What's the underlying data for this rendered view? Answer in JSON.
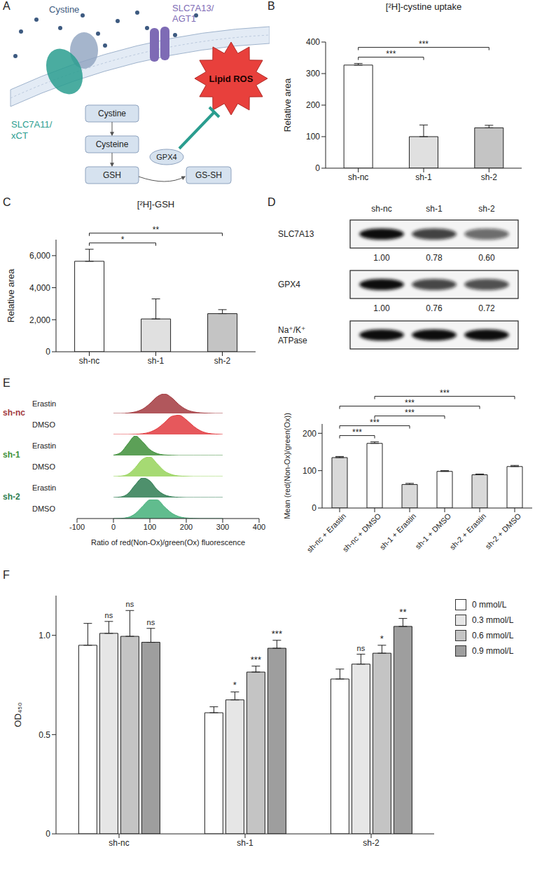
{
  "diagram": {
    "panel": "A",
    "extracellular": "Cystine",
    "transporters": [
      {
        "label": [
          "SLC7A11/",
          "xCT"
        ],
        "color": "#2a9d8f"
      },
      {
        "label": [
          "SLC7A13/",
          "AGT1"
        ],
        "color": "#7e6bb5"
      }
    ],
    "stress": "Lipid ROS",
    "pathway": [
      "Cystine",
      "Cysteine",
      "GSH"
    ],
    "enzyme": "GPX4",
    "product": "GS-SH"
  },
  "blot": {
    "panel": "D",
    "lanes": [
      "sh-nc",
      "sh-1",
      "sh-2"
    ],
    "rows": [
      {
        "label": "SLC7A13",
        "quantification": [
          "1.00",
          "0.78",
          "0.60"
        ]
      },
      {
        "label": "GPX4",
        "quantification": [
          "1.00",
          "0.76",
          "0.72"
        ]
      },
      {
        "label": "Na⁺/K⁺ ATPase",
        "quantification": null
      }
    ]
  },
  "chart_data": [
    {
      "panel": "B",
      "type": "bar",
      "title": "[²H]-cystine uptake",
      "y_label": "Relative area",
      "categories": [
        "sh-nc",
        "sh-1",
        "sh-2"
      ],
      "values": [
        327,
        100,
        128
      ],
      "errors": [
        5,
        37,
        8
      ],
      "colors": [
        "#ffffff",
        "#e0e0e0",
        "#c4c4c4"
      ],
      "ylim": [
        0,
        400
      ],
      "yticks": [
        0,
        100,
        200,
        300,
        400
      ],
      "grid": false,
      "significance": [
        {
          "from": "sh-nc",
          "to": "sh-1",
          "label": "***"
        },
        {
          "from": "sh-nc",
          "to": "sh-2",
          "label": "***"
        }
      ]
    },
    {
      "panel": "C",
      "type": "bar",
      "title": "[²H]-GSH",
      "y_label": "Relative area",
      "categories": [
        "sh-nc",
        "sh-1",
        "sh-2"
      ],
      "values": [
        5650,
        2050,
        2380
      ],
      "errors": [
        750,
        1250,
        250
      ],
      "colors": [
        "#ffffff",
        "#e0e0e0",
        "#c4c4c4"
      ],
      "ylim": [
        0,
        7000
      ],
      "yticks": [
        0,
        {
          "value": 2000,
          "label": "2,000"
        },
        {
          "value": 4000,
          "label": "4,000"
        },
        {
          "value": 6000,
          "label": "6,000"
        }
      ],
      "grid": false,
      "significance": [
        {
          "from": "sh-nc",
          "to": "sh-1",
          "label": "*"
        },
        {
          "from": "sh-nc",
          "to": "sh-2",
          "label": "**"
        }
      ]
    },
    {
      "panel": "E",
      "type": "area",
      "x_label": "Ratio of red(Non-Ox)/green(Ox) fluorescence",
      "x": [
        0,
        20,
        40,
        60,
        80,
        100,
        120,
        140,
        160,
        180,
        200,
        220,
        240,
        260,
        280,
        300
      ],
      "xlim": [
        -100,
        400
      ],
      "xticks": [
        -100,
        0,
        100,
        200,
        300,
        400
      ],
      "ylim": [
        0,
        100
      ],
      "tick_labels": "x",
      "grid": false,
      "series": [
        {
          "group": "sh-nc",
          "name": "Erastin",
          "color": "#a33a3f",
          "values": [
            0,
            0,
            2,
            8,
            22,
            50,
            85,
            100,
            80,
            45,
            20,
            8,
            3,
            1,
            0,
            0
          ]
        },
        {
          "group": "sh-nc",
          "name": "DMSO",
          "color": "#e23b3f",
          "values": [
            0,
            0,
            0,
            1,
            4,
            12,
            30,
            60,
            92,
            98,
            75,
            42,
            18,
            6,
            2,
            0
          ]
        },
        {
          "group": "sh-1",
          "name": "Erastin",
          "color": "#3f8f3a",
          "values": [
            2,
            15,
            60,
            100,
            70,
            30,
            10,
            3,
            1,
            0,
            0,
            0,
            0,
            0,
            0,
            0
          ]
        },
        {
          "group": "sh-1",
          "name": "DMSO",
          "color": "#97d35a",
          "values": [
            0,
            2,
            12,
            45,
            88,
            100,
            65,
            28,
            10,
            3,
            1,
            0,
            0,
            0,
            0,
            0
          ]
        },
        {
          "group": "sh-2",
          "name": "Erastin",
          "color": "#2f7d52",
          "values": [
            0,
            3,
            20,
            65,
            100,
            85,
            40,
            14,
            4,
            1,
            0,
            0,
            0,
            0,
            0,
            0
          ]
        },
        {
          "group": "sh-2",
          "name": "DMSO",
          "color": "#45b07a",
          "values": [
            0,
            1,
            6,
            25,
            62,
            95,
            95,
            60,
            28,
            10,
            3,
            1,
            0,
            0,
            0,
            0
          ]
        }
      ]
    },
    {
      "panel": "E",
      "type": "bar",
      "y_label": "Mean (red(Non-Ox)/green(Ox))",
      "categories": [
        "sh-nc + Erastin",
        "sh-nc + DMSO",
        "sh-1 + Erastin",
        "sh-1 + DMSO",
        "sh-2 + Erastin",
        "sh-2 + DMSO"
      ],
      "values": [
        135,
        173,
        63,
        98,
        89,
        111
      ],
      "errors": [
        3,
        4,
        3,
        2,
        2,
        3
      ],
      "colors": [
        "#d9d9d9",
        "#ffffff",
        "#d9d9d9",
        "#ffffff",
        "#d9d9d9",
        "#ffffff"
      ],
      "ylim": [
        0,
        225
      ],
      "yticks": [
        0,
        100,
        200
      ],
      "grid": false,
      "significance": [
        {
          "from": "sh-nc + Erastin",
          "to": "sh-nc + DMSO",
          "label": "***"
        },
        {
          "from": "sh-nc + Erastin",
          "to": "sh-1 + Erastin",
          "label": "***"
        },
        {
          "from": "sh-nc + DMSO",
          "to": "sh-1 + DMSO",
          "label": "***"
        },
        {
          "from": "sh-nc + Erastin",
          "to": "sh-2 + Erastin",
          "label": "***"
        },
        {
          "from": "sh-nc + DMSO",
          "to": "sh-2 + DMSO",
          "label": "***"
        }
      ]
    },
    {
      "panel": "F",
      "type": "bar",
      "y_label": "OD₄₅₀",
      "categories": [
        "sh-nc",
        "sh-1",
        "sh-2"
      ],
      "ylim": [
        0,
        1.2
      ],
      "yticks": [
        0,
        0.5,
        {
          "value": 1,
          "label": "1.0"
        }
      ],
      "grid": false,
      "legend": "right",
      "series": [
        {
          "name": "0 mmol/L",
          "color": "#ffffff",
          "values": [
            0.95,
            0.61,
            0.78
          ],
          "errors": [
            0.11,
            0.03,
            0.05
          ],
          "significance": [
            null,
            null,
            null
          ]
        },
        {
          "name": "0.3 mmol/L",
          "color": "#e6e6e6",
          "values": [
            1.01,
            0.675,
            0.855
          ],
          "errors": [
            0.06,
            0.04,
            0.05
          ],
          "significance": [
            "ns",
            "*",
            "ns"
          ]
        },
        {
          "name": "0.6 mmol/L",
          "color": "#c4c4c4",
          "values": [
            0.995,
            0.815,
            0.91
          ],
          "errors": [
            0.13,
            0.03,
            0.04
          ],
          "significance": [
            "ns",
            "***",
            "*"
          ]
        },
        {
          "name": "0.9 mmol/L",
          "color": "#9e9e9e",
          "values": [
            0.965,
            0.935,
            1.045
          ],
          "errors": [
            0.07,
            0.04,
            0.04
          ],
          "significance": [
            "ns",
            "***",
            "**"
          ]
        }
      ]
    }
  ]
}
